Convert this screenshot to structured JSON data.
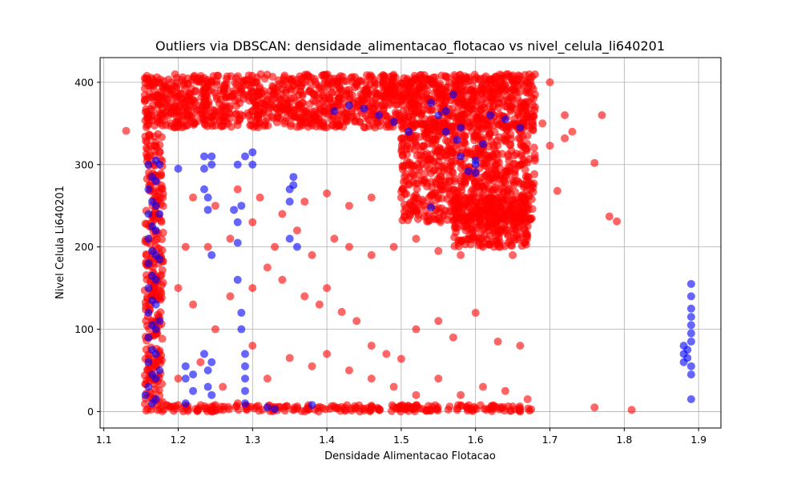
{
  "chart_data": {
    "type": "scatter",
    "title": "Outliers via DBSCAN: densidade_alimentacao_flotacao vs nivel_celula_li640201",
    "xlabel": "Densidade Alimentacao Flotacao",
    "ylabel": "Nivel Celula Li640201",
    "xlim": [
      1.095,
      1.93
    ],
    "ylim": [
      -20,
      430
    ],
    "xticks": [
      1.1,
      1.2,
      1.3,
      1.4,
      1.5,
      1.6,
      1.7,
      1.8,
      1.9
    ],
    "xtick_labels": [
      "1.1",
      "1.2",
      "1.3",
      "1.4",
      "1.5",
      "1.6",
      "1.7",
      "1.8",
      "1.9"
    ],
    "yticks": [
      0,
      100,
      200,
      300,
      400
    ],
    "ytick_labels": [
      "0",
      "100",
      "200",
      "300",
      "400"
    ],
    "grid": true,
    "colors": {
      "series_outlier": "#ff0000",
      "series_inlier": "#0000ff"
    },
    "series": [
      {
        "color": "#0000ff",
        "marker": "circle",
        "alpha": 0.6,
        "points": [
          [
            1.156,
            20
          ],
          [
            1.16,
            30
          ],
          [
            1.16,
            60
          ],
          [
            1.16,
            90
          ],
          [
            1.16,
            120
          ],
          [
            1.16,
            150
          ],
          [
            1.16,
            180
          ],
          [
            1.16,
            210
          ],
          [
            1.16,
            240
          ],
          [
            1.16,
            270
          ],
          [
            1.16,
            300
          ],
          [
            1.165,
            10
          ],
          [
            1.165,
            45
          ],
          [
            1.165,
            75
          ],
          [
            1.165,
            105
          ],
          [
            1.165,
            135
          ],
          [
            1.165,
            165
          ],
          [
            1.165,
            195
          ],
          [
            1.165,
            225
          ],
          [
            1.165,
            255
          ],
          [
            1.165,
            285
          ],
          [
            1.17,
            15
          ],
          [
            1.17,
            40
          ],
          [
            1.17,
            70
          ],
          [
            1.17,
            100
          ],
          [
            1.17,
            130
          ],
          [
            1.17,
            160
          ],
          [
            1.17,
            190
          ],
          [
            1.17,
            220
          ],
          [
            1.17,
            250
          ],
          [
            1.17,
            280
          ],
          [
            1.17,
            305
          ],
          [
            1.175,
            50
          ],
          [
            1.175,
            110
          ],
          [
            1.175,
            185
          ],
          [
            1.175,
            240
          ],
          [
            1.175,
            300
          ],
          [
            1.2,
            295
          ],
          [
            1.21,
            10
          ],
          [
            1.21,
            40
          ],
          [
            1.21,
            55
          ],
          [
            1.22,
            45
          ],
          [
            1.22,
            25
          ],
          [
            1.235,
            310
          ],
          [
            1.235,
            295
          ],
          [
            1.235,
            270
          ],
          [
            1.24,
            260
          ],
          [
            1.24,
            245
          ],
          [
            1.245,
            300
          ],
          [
            1.245,
            310
          ],
          [
            1.245,
            190
          ],
          [
            1.24,
            30
          ],
          [
            1.24,
            50
          ],
          [
            1.245,
            20
          ],
          [
            1.245,
            60
          ],
          [
            1.235,
            70
          ],
          [
            1.275,
            245
          ],
          [
            1.28,
            300
          ],
          [
            1.28,
            230
          ],
          [
            1.28,
            205
          ],
          [
            1.28,
            160
          ],
          [
            1.285,
            250
          ],
          [
            1.285,
            120
          ],
          [
            1.285,
            100
          ],
          [
            1.29,
            40
          ],
          [
            1.29,
            25
          ],
          [
            1.29,
            70
          ],
          [
            1.29,
            10
          ],
          [
            1.29,
            55
          ],
          [
            1.29,
            310
          ],
          [
            1.3,
            315
          ],
          [
            1.3,
            300
          ],
          [
            1.32,
            5
          ],
          [
            1.33,
            3
          ],
          [
            1.35,
            255
          ],
          [
            1.35,
            270
          ],
          [
            1.355,
            285
          ],
          [
            1.355,
            275
          ],
          [
            1.35,
            210
          ],
          [
            1.36,
            200
          ],
          [
            1.38,
            8
          ],
          [
            1.41,
            365
          ],
          [
            1.43,
            372
          ],
          [
            1.45,
            368
          ],
          [
            1.47,
            360
          ],
          [
            1.49,
            352
          ],
          [
            1.51,
            340
          ],
          [
            1.54,
            248
          ],
          [
            1.54,
            375
          ],
          [
            1.55,
            360
          ],
          [
            1.56,
            340
          ],
          [
            1.56,
            365
          ],
          [
            1.57,
            385
          ],
          [
            1.575,
            330
          ],
          [
            1.58,
            345
          ],
          [
            1.58,
            310
          ],
          [
            1.59,
            292
          ],
          [
            1.6,
            305
          ],
          [
            1.6,
            300
          ],
          [
            1.6,
            290
          ],
          [
            1.61,
            325
          ],
          [
            1.62,
            360
          ],
          [
            1.64,
            355
          ],
          [
            1.66,
            345
          ],
          [
            1.88,
            60
          ],
          [
            1.88,
            70
          ],
          [
            1.88,
            80
          ],
          [
            1.885,
            65
          ],
          [
            1.885,
            75
          ],
          [
            1.89,
            15
          ],
          [
            1.89,
            45
          ],
          [
            1.89,
            55
          ],
          [
            1.89,
            85
          ],
          [
            1.89,
            95
          ],
          [
            1.89,
            105
          ],
          [
            1.89,
            115
          ],
          [
            1.89,
            125
          ],
          [
            1.89,
            140
          ],
          [
            1.89,
            155
          ]
        ]
      },
      {
        "color": "#ff0000",
        "marker": "circle",
        "alpha": 0.6,
        "points": [
          [
            1.13,
            341
          ],
          [
            1.76,
            5
          ],
          [
            1.81,
            2
          ],
          [
            1.76,
            302
          ],
          [
            1.77,
            360
          ],
          [
            1.78,
            237
          ],
          [
            1.79,
            231
          ],
          [
            1.73,
            340
          ],
          [
            1.72,
            332
          ],
          [
            1.71,
            268
          ],
          [
            1.7,
            323
          ],
          [
            1.7,
            400
          ],
          [
            1.72,
            360
          ],
          [
            1.69,
            350
          ],
          [
            1.68,
            370
          ],
          [
            1.68,
            385
          ],
          [
            1.2,
            150
          ],
          [
            1.22,
            130
          ],
          [
            1.25,
            100
          ],
          [
            1.27,
            140
          ],
          [
            1.3,
            150
          ],
          [
            1.32,
            175
          ],
          [
            1.34,
            160
          ],
          [
            1.37,
            140
          ],
          [
            1.39,
            130
          ],
          [
            1.4,
            150
          ],
          [
            1.42,
            121
          ],
          [
            1.44,
            110
          ],
          [
            1.46,
            80
          ],
          [
            1.48,
            70
          ],
          [
            1.5,
            64
          ],
          [
            1.52,
            100
          ],
          [
            1.55,
            110
          ],
          [
            1.57,
            90
          ],
          [
            1.6,
            120
          ],
          [
            1.63,
            85
          ],
          [
            1.66,
            80
          ],
          [
            1.21,
            200
          ],
          [
            1.24,
            200
          ],
          [
            1.27,
            210
          ],
          [
            1.3,
            230
          ],
          [
            1.33,
            200
          ],
          [
            1.36,
            220
          ],
          [
            1.38,
            190
          ],
          [
            1.41,
            210
          ],
          [
            1.43,
            200
          ],
          [
            1.46,
            190
          ],
          [
            1.49,
            200
          ],
          [
            1.52,
            210
          ],
          [
            1.55,
            195
          ],
          [
            1.58,
            190
          ],
          [
            1.61,
            200
          ],
          [
            1.63,
            220
          ],
          [
            1.65,
            190
          ],
          [
            1.67,
            225
          ],
          [
            1.22,
            260
          ],
          [
            1.25,
            250
          ],
          [
            1.28,
            270
          ],
          [
            1.31,
            260
          ],
          [
            1.34,
            240
          ],
          [
            1.37,
            255
          ],
          [
            1.4,
            265
          ],
          [
            1.43,
            250
          ],
          [
            1.46,
            260
          ],
          [
            1.5,
            260
          ],
          [
            1.2,
            40
          ],
          [
            1.23,
            60
          ],
          [
            1.26,
            30
          ],
          [
            1.28,
            10
          ],
          [
            1.3,
            80
          ],
          [
            1.32,
            40
          ],
          [
            1.35,
            65
          ],
          [
            1.38,
            55
          ],
          [
            1.4,
            70
          ],
          [
            1.43,
            50
          ],
          [
            1.46,
            40
          ],
          [
            1.49,
            30
          ],
          [
            1.52,
            20
          ],
          [
            1.55,
            40
          ],
          [
            1.58,
            20
          ],
          [
            1.61,
            30
          ],
          [
            1.64,
            25
          ],
          [
            1.67,
            15
          ],
          [
            1.66,
            0
          ]
        ]
      }
    ]
  }
}
